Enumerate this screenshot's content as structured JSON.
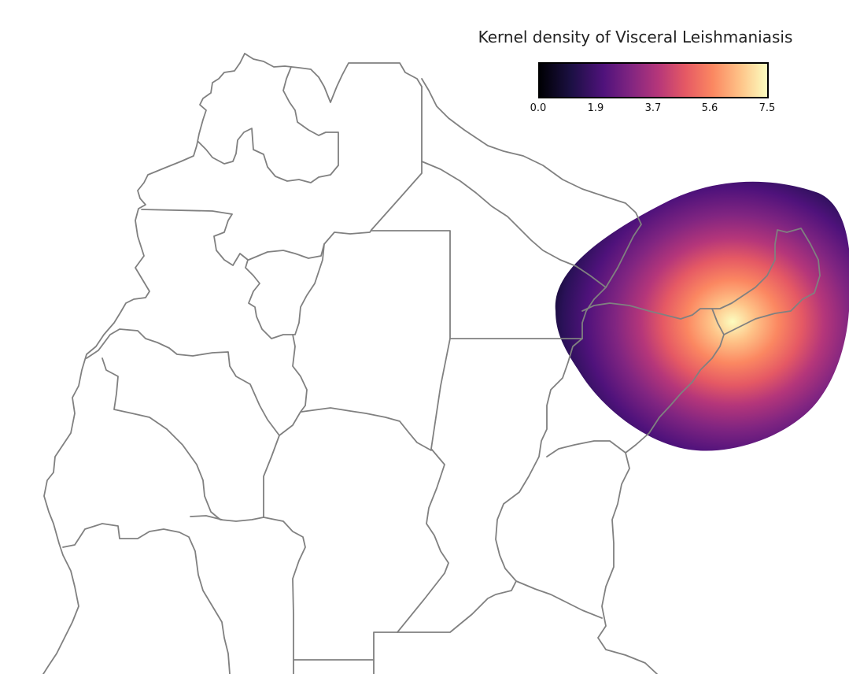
{
  "title": "Kernel density of Visceral Leishmaniasis",
  "colorbar": {
    "colormap": "magma",
    "ticks": [
      "0.0",
      "1.9",
      "3.7",
      "5.6",
      "7.5"
    ],
    "min": 0.0,
    "max": 7.5
  },
  "colors": {
    "border": "#808080",
    "background": "#ffffff",
    "ramp": [
      "#000004",
      "#1c1044",
      "#4f127b",
      "#812581",
      "#b5367a",
      "#e55964",
      "#fb8761",
      "#fec287",
      "#fcfdbf"
    ]
  },
  "map": {
    "layers": [
      "administrative-boundaries",
      "kernel-density-surface"
    ]
  }
}
